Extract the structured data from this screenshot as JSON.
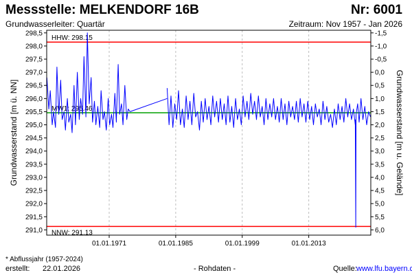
{
  "header": {
    "title": "Messstelle: MELKENDORF 16B",
    "station_number": "Nr: 6001",
    "aquifer": "Grundwasserleiter: Quartär",
    "period": "Zeitraum: Nov 1957 - Jan 2026"
  },
  "footer": {
    "footnote": "* Abflussjahr (1957-2024)",
    "created_label": "erstellt:",
    "created_date": "22.01.2026",
    "raw_data": "- Rohdaten -",
    "source_label": "Quelle:",
    "source_url": "www.lfu.bayern.de"
  },
  "colors": {
    "series": "#0000ff",
    "hhw_line": "#ff0000",
    "nnw_line": "#ff0000",
    "mw_line": "#00a000",
    "grid": "#bdbdbd"
  },
  "chart_data": {
    "type": "line",
    "ylabel": "Grundwasserstand [m ü. NN]",
    "y2label": "Grundwasserstand [m u. Gelände]",
    "ylim": [
      290.8,
      298.6
    ],
    "yticks": [
      "298,5",
      "298,0",
      "297,5",
      "297,0",
      "296,5",
      "296,0",
      "295,5",
      "295,0",
      "294,5",
      "294,0",
      "293,5",
      "293,0",
      "292,5",
      "292,0",
      "291,5",
      "291,0"
    ],
    "y2ticks": [
      "-1,5",
      "-1,0",
      "-0,5",
      "0,0",
      "0,5",
      "1,0",
      "1,5",
      "2,0",
      "2,5",
      "3,0",
      "3,5",
      "4,0",
      "4,5",
      "5,0",
      "5,5",
      "6,0"
    ],
    "xlim": [
      1957.85,
      2026.06
    ],
    "xticks": [
      {
        "label": "01.01.1971",
        "x": 1971.0
      },
      {
        "label": "01.01.1985",
        "x": 1985.0
      },
      {
        "label": "01.01.1999",
        "x": 1999.0
      },
      {
        "label": "01.01.2013",
        "x": 2013.0
      }
    ],
    "reference_lines": [
      {
        "label": "HHW: 298.15",
        "y": 298.15,
        "kind": "hhw"
      },
      {
        "label": "MW1: 295.46",
        "y": 295.46,
        "kind": "mw"
      },
      {
        "label": "NNW: 291.13",
        "y": 291.13,
        "kind": "nnw"
      }
    ],
    "grid": true,
    "series": [
      {
        "segments": [
          {
            "x": [
              1957.9,
              1958.3,
              1958.6,
              1959.0,
              1959.3,
              1959.7,
              1960.0,
              1960.4,
              1960.8,
              1961.1,
              1961.5,
              1961.8,
              1962.2,
              1962.5,
              1962.9,
              1963.2,
              1963.6,
              1963.9,
              1964.3,
              1964.7,
              1965.0,
              1965.4,
              1965.7,
              1966.1,
              1966.4,
              1966.8,
              1967.2,
              1967.5,
              1967.9,
              1968.2,
              1968.6,
              1969.0,
              1969.3,
              1969.7,
              1970.0,
              1970.4,
              1970.8,
              1971.1,
              1971.5,
              1971.8,
              1972.2,
              1972.5,
              1972.9,
              1973.2,
              1973.6,
              1973.9,
              1974.3,
              1974.7,
              1975.0,
              1975.4
            ],
            "y": [
              296.8,
              295.6,
              296.3,
              295.0,
              295.5,
              294.9,
              297.2,
              295.4,
              296.7,
              295.2,
              295.5,
              294.8,
              296.0,
              295.1,
              295.4,
              294.7,
              296.5,
              295.0,
              297.0,
              295.2,
              296.0,
              295.4,
              297.6,
              295.3,
              298.5,
              295.8,
              296.8,
              295.1,
              295.9,
              295.0,
              295.7,
              294.9,
              296.3,
              295.2,
              295.5,
              294.8,
              296.0,
              295.0,
              295.4,
              294.9,
              296.2,
              295.1,
              297.3,
              295.4,
              295.8,
              295.0,
              296.5,
              295.2,
              295.6,
              295.5
            ]
          },
          {
            "x": [
              1975.4,
              1983.2
            ],
            "y": [
              295.5,
              296.0
            ]
          },
          {
            "x": [
              1983.2,
              1983.6,
              1984.0,
              1984.4,
              1984.8,
              1985.2,
              1985.6,
              1986.0,
              1986.4,
              1986.8,
              1987.2,
              1987.6,
              1988.0,
              1988.4,
              1988.8,
              1989.2,
              1989.6,
              1990.0,
              1990.4,
              1990.8,
              1991.2,
              1991.6,
              1992.0,
              1992.4,
              1992.8,
              1993.2,
              1993.6,
              1994.0,
              1994.4,
              1994.8,
              1995.2,
              1995.6,
              1996.0,
              1996.4,
              1996.8,
              1997.2,
              1997.6,
              1998.0,
              1998.4,
              1998.8,
              1999.2,
              1999.6,
              2000.0,
              2000.4,
              2000.8,
              2001.2,
              2001.6,
              2002.0,
              2002.4,
              2002.8,
              2003.2,
              2003.6,
              2004.0,
              2004.4,
              2004.8,
              2005.2,
              2005.6,
              2006.0,
              2006.4,
              2006.8,
              2007.2,
              2007.6,
              2008.0,
              2008.4,
              2008.8,
              2009.2,
              2009.6,
              2010.0,
              2010.4,
              2010.8,
              2011.2,
              2011.6,
              2012.0,
              2012.4,
              2012.8,
              2013.2,
              2013.6,
              2014.0,
              2014.4,
              2014.8,
              2015.2,
              2015.6,
              2016.0,
              2016.4,
              2016.8,
              2017.2,
              2017.6,
              2018.0,
              2018.4,
              2018.8,
              2019.2,
              2019.6,
              2020.0,
              2020.4,
              2020.8,
              2021.2,
              2021.6,
              2022.0,
              2022.4,
              2022.8
            ],
            "y": [
              296.4,
              295.0,
              296.1,
              294.9,
              295.8,
              295.2,
              296.3,
              295.0,
              295.6,
              294.9,
              296.1,
              295.2,
              295.9,
              295.0,
              296.2,
              295.3,
              295.5,
              294.8,
              295.9,
              295.1,
              296.0,
              295.2,
              295.7,
              295.0,
              296.1,
              295.3,
              295.9,
              295.1,
              296.0,
              295.2,
              295.8,
              295.0,
              296.1,
              295.1,
              295.7,
              294.9,
              296.0,
              295.2,
              295.6,
              295.0,
              296.1,
              295.3,
              295.9,
              295.2,
              296.2,
              295.4,
              295.9,
              295.2,
              296.1,
              295.3,
              295.7,
              295.0,
              296.0,
              295.2,
              295.8,
              295.3,
              296.0,
              295.2,
              295.7,
              295.1,
              296.0,
              295.2,
              295.8,
              295.0,
              295.9,
              295.3,
              295.7,
              295.2,
              295.9,
              295.1,
              296.0,
              295.3,
              295.8,
              295.1,
              295.9,
              295.2,
              295.7,
              295.0,
              295.8,
              295.3,
              295.6,
              295.0,
              295.9,
              295.2,
              295.7,
              295.1,
              295.4,
              294.9,
              295.6,
              295.0,
              295.8,
              295.2,
              295.7,
              295.1,
              296.0,
              295.3,
              295.8,
              295.2,
              295.6,
              295.0
            ]
          },
          {
            "x": [
              2022.8,
              2022.9,
              2022.95,
              2023.3,
              2023.6,
              2024.0,
              2024.4,
              2024.8,
              2025.2,
              2025.6,
              2026.0
            ],
            "y": [
              295.2,
              291.1,
              295.4,
              295.8,
              295.1,
              296.0,
              295.2,
              295.7,
              295.0,
              295.5,
              295.3
            ]
          }
        ]
      }
    ]
  }
}
